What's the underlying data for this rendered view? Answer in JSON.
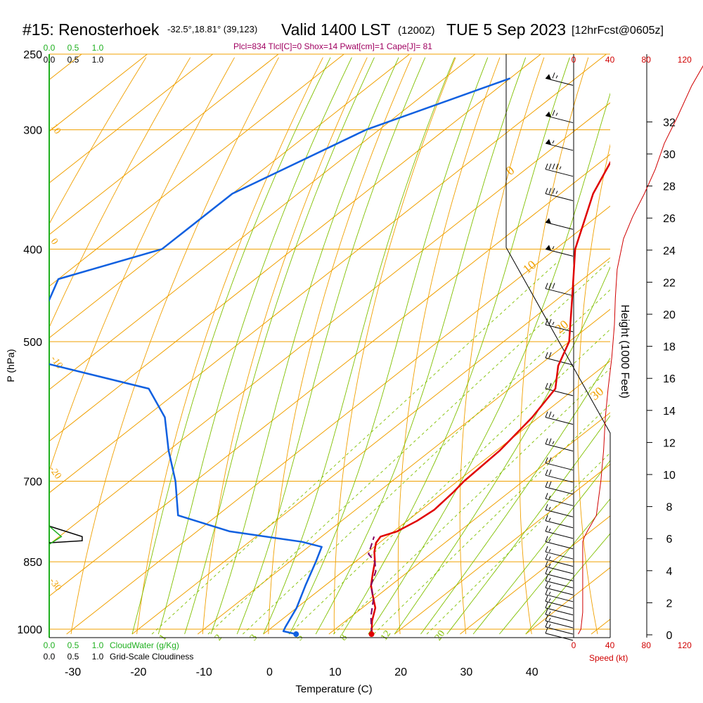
{
  "header": {
    "station": "#15: Renosterhoek",
    "coords": "-32.5°,18.81° (39,123)",
    "valid": "Valid 1400 LST",
    "zulu": "(1200Z)",
    "date": "TUE 5 Sep 2023",
    "forecast": "[12hrFcst@0605z]",
    "indices": "Plcl=834 Tlcl[C]=0 Shox=14 Pwat[cm]=1 Cape[J]= 81"
  },
  "chart_data": {
    "type": "line",
    "title": "#15: Renosterhoek",
    "xlabel": "Temperature (C)",
    "ylabel": "P (hPa)",
    "height_label": "Height (1000 Feet)",
    "speed_label": "Speed (kt)",
    "cloudwater_label": "CloudWater (g/Kg)",
    "cloudiness_label": "Grid-Scale Cloudiness",
    "x_ticks": [
      "-30",
      "-20",
      "-10",
      "0",
      "10",
      "20",
      "30",
      "40"
    ],
    "p_ticks": [
      "250",
      "300",
      "400",
      "500",
      "700",
      "850",
      "1000"
    ],
    "height_ticks": [
      "0",
      "2",
      "4",
      "6",
      "8",
      "10",
      "12",
      "14",
      "16",
      "18",
      "20",
      "22",
      "24",
      "26",
      "28",
      "30",
      "32"
    ],
    "speed_ticks": [
      "0",
      "40",
      "80",
      "120"
    ],
    "fraction_ticks": [
      "0.0",
      "0.5",
      "1.0"
    ],
    "dry_adiabat_labels": [
      "10",
      "0",
      "-10",
      "-20",
      "-30"
    ],
    "isotherm_labels": [
      "0",
      "10",
      "20",
      "30"
    ],
    "mixing_ratio_labels": [
      "1",
      "2",
      "3",
      "5",
      "8",
      "12",
      "20"
    ],
    "colors": {
      "temperature": "#e00000",
      "dewpoint": "#1060e0",
      "parcel": "#800060",
      "isobar": "#f0a000",
      "adiabat": "#80c000",
      "mixing_ratio": "#80c000",
      "speed": "#d00000",
      "cloudwater": "#20b020",
      "indices": "#a00060"
    },
    "series": [
      {
        "name": "temperature",
        "points": [
          [
            16.5,
            1012
          ],
          [
            14,
            980
          ],
          [
            12,
            950
          ],
          [
            9,
            920
          ],
          [
            7,
            900
          ],
          [
            5,
            875
          ],
          [
            3,
            850
          ],
          [
            1,
            830
          ],
          [
            -0.5,
            812
          ],
          [
            -1,
            800
          ],
          [
            0.5,
            790
          ],
          [
            1.5,
            770
          ],
          [
            2,
            750
          ],
          [
            1.5,
            720
          ],
          [
            1,
            700
          ],
          [
            0.5,
            650
          ],
          [
            -1,
            600
          ],
          [
            -3,
            560
          ],
          [
            -7,
            530
          ],
          [
            -10,
            500
          ],
          [
            -18,
            450
          ],
          [
            -27,
            400
          ],
          [
            -35,
            350
          ],
          [
            -42,
            300
          ],
          [
            -48,
            265
          ]
        ]
      },
      {
        "name": "dewpoint",
        "points": [
          [
            5,
            1012
          ],
          [
            2.5,
            1005
          ],
          [
            2,
            995
          ],
          [
            0,
            950
          ],
          [
            -3,
            900
          ],
          [
            -6,
            850
          ],
          [
            -8,
            820
          ],
          [
            -12,
            810
          ],
          [
            -25,
            790
          ],
          [
            -36,
            760
          ],
          [
            -43,
            700
          ],
          [
            -50,
            650
          ],
          [
            -57,
            600
          ],
          [
            -65,
            560
          ],
          [
            -90,
            520
          ],
          [
            -100,
            430
          ],
          [
            -90,
            400
          ],
          [
            -90,
            350
          ],
          [
            -82,
            300
          ],
          [
            -70,
            265
          ]
        ]
      },
      {
        "name": "parcel",
        "points": [
          [
            16.5,
            1012
          ],
          [
            13,
            970
          ],
          [
            10,
            930
          ],
          [
            7,
            900
          ],
          [
            5,
            870
          ],
          [
            3,
            850
          ],
          [
            0.5,
            834
          ],
          [
            -0.5,
            820
          ],
          [
            -2,
            800
          ]
        ]
      }
    ],
    "wind_barbs": [
      {
        "p": 265,
        "ws": 65
      },
      {
        "p": 290,
        "ws": 65
      },
      {
        "p": 310,
        "ws": 55
      },
      {
        "p": 330,
        "ws": 45
      },
      {
        "p": 350,
        "ws": 35
      },
      {
        "p": 375,
        "ws": 50
      },
      {
        "p": 400,
        "ws": 55
      },
      {
        "p": 440,
        "ws": 30
      },
      {
        "p": 480,
        "ws": 25
      },
      {
        "p": 520,
        "ws": 20
      },
      {
        "p": 560,
        "ws": 20
      },
      {
        "p": 600,
        "ws": 25
      },
      {
        "p": 640,
        "ws": 25
      },
      {
        "p": 670,
        "ws": 20
      },
      {
        "p": 690,
        "ws": 20
      },
      {
        "p": 710,
        "ws": 20
      },
      {
        "p": 730,
        "ws": 15
      },
      {
        "p": 750,
        "ws": 15
      },
      {
        "p": 770,
        "ws": 15
      },
      {
        "p": 790,
        "ws": 15
      },
      {
        "p": 810,
        "ws": 15
      },
      {
        "p": 830,
        "ws": 15
      },
      {
        "p": 845,
        "ws": 15
      },
      {
        "p": 860,
        "ws": 15
      },
      {
        "p": 875,
        "ws": 15
      },
      {
        "p": 890,
        "ws": 15
      },
      {
        "p": 905,
        "ws": 15
      },
      {
        "p": 920,
        "ws": 15
      },
      {
        "p": 935,
        "ws": 15
      },
      {
        "p": 950,
        "ws": 15
      },
      {
        "p": 965,
        "ws": 15
      },
      {
        "p": 980,
        "ws": 15
      },
      {
        "p": 995,
        "ws": 15
      },
      {
        "p": 1010,
        "ws": 10
      }
    ],
    "speed_profile": [
      [
        5,
        1012
      ],
      [
        8,
        1000
      ],
      [
        10,
        960
      ],
      [
        10,
        900
      ],
      [
        10,
        850
      ],
      [
        10,
        810
      ],
      [
        12,
        800
      ],
      [
        15,
        790
      ],
      [
        25,
        760
      ],
      [
        30,
        700
      ],
      [
        33,
        650
      ],
      [
        35,
        600
      ],
      [
        38,
        560
      ],
      [
        42,
        520
      ],
      [
        45,
        480
      ],
      [
        46,
        450
      ],
      [
        48,
        420
      ],
      [
        55,
        390
      ],
      [
        65,
        370
      ],
      [
        78,
        350
      ],
      [
        90,
        330
      ],
      [
        100,
        310
      ],
      [
        115,
        290
      ],
      [
        130,
        270
      ],
      [
        145,
        255
      ]
    ],
    "cloudiness_profile": [
      [
        0,
        780
      ],
      [
        0.68,
        800
      ],
      [
        0.68,
        808
      ],
      [
        0,
        812
      ]
    ],
    "cloudwater_profile": [
      [
        0,
        780
      ],
      [
        0.25,
        800
      ],
      [
        0,
        815
      ],
      [
        0,
        850
      ]
    ]
  }
}
